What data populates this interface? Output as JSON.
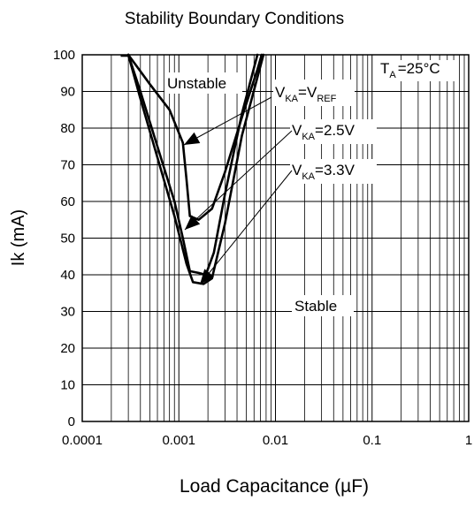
{
  "chart_data": {
    "type": "line",
    "title": "Stability Boundary Conditions",
    "xlabel": "Load Capacitance (µF)",
    "ylabel": "Ik (mA)",
    "xscale": "log",
    "xlim": [
      0.0001,
      1
    ],
    "ylim": [
      0,
      100
    ],
    "grid": true,
    "x_tick_labels": [
      "0.0001",
      "0.001",
      "0.01",
      "0.1",
      "1"
    ],
    "y_tick_labels": [
      "0",
      "10",
      "20",
      "30",
      "40",
      "50",
      "60",
      "70",
      "80",
      "90",
      "100"
    ],
    "series": [
      {
        "name": "V_KA = V_REF",
        "points": [
          [
            0.0003,
            100
          ],
          [
            0.0005,
            92
          ],
          [
            0.0008,
            85
          ],
          [
            0.0011,
            76
          ],
          [
            0.0012,
            66
          ],
          [
            0.0013,
            56
          ],
          [
            0.0016,
            55
          ],
          [
            0.0022,
            58
          ],
          [
            0.003,
            68
          ],
          [
            0.0045,
            83
          ],
          [
            0.0065,
            96
          ],
          [
            0.0072,
            100
          ]
        ]
      },
      {
        "name": "V_KA = 2.5V",
        "points": [
          [
            0.0003,
            100
          ],
          [
            0.0004,
            90
          ],
          [
            0.0006,
            75
          ],
          [
            0.0009,
            60
          ],
          [
            0.0011,
            50
          ],
          [
            0.0013,
            41
          ],
          [
            0.0016,
            40.5
          ],
          [
            0.0019,
            40
          ],
          [
            0.0023,
            46
          ],
          [
            0.003,
            62
          ],
          [
            0.0045,
            84
          ],
          [
            0.0065,
            100
          ]
        ]
      },
      {
        "name": "V_KA = 3.3V",
        "points": [
          [
            0.0003,
            100
          ],
          [
            0.0004,
            88
          ],
          [
            0.0006,
            72
          ],
          [
            0.0009,
            56
          ],
          [
            0.0012,
            43
          ],
          [
            0.0014,
            38
          ],
          [
            0.0018,
            37.5
          ],
          [
            0.0022,
            39
          ],
          [
            0.003,
            54
          ],
          [
            0.0045,
            78
          ],
          [
            0.0075,
            100
          ]
        ]
      }
    ],
    "annotations": {
      "temperature": {
        "main": "T",
        "sub": "A",
        "rest": "=25°C"
      },
      "unstable": "Unstable",
      "stable": "Stable",
      "vref": {
        "v1": "V",
        "s1": "KA",
        "eq": "=V",
        "s2": "REF"
      },
      "v25": {
        "v": "V",
        "s": "KA",
        "val": "=2.5V"
      },
      "v33": {
        "v": "V",
        "s": "KA",
        "val": "=3.3V"
      }
    }
  }
}
